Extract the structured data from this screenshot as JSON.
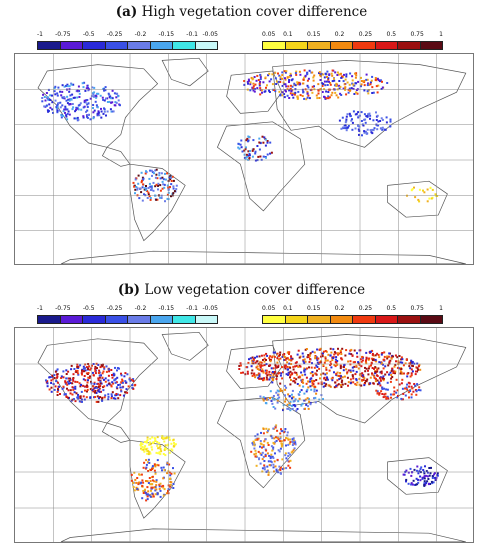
{
  "panels": [
    {
      "letter": "(a)",
      "title": "High vegetation cover difference",
      "neg_ticks": [
        "-1",
        "-0.75",
        "-0.5",
        "-0.25",
        "-0.2",
        "-0.15",
        "-0.1",
        "-0.05"
      ],
      "pos_ticks": [
        "0.05",
        "0.1",
        "0.15",
        "0.2",
        "0.25",
        "0.5",
        "0.75",
        "1"
      ]
    },
    {
      "letter": "(b)",
      "title": "Low vegetation cover difference",
      "neg_ticks": [
        "-1",
        "-0.75",
        "-0.5",
        "-0.25",
        "-0.2",
        "-0.15",
        "-0.1",
        "-0.05"
      ],
      "pos_ticks": [
        "0.05",
        "0.1",
        "0.15",
        "0.2",
        "0.25",
        "0.5",
        "0.75",
        "1"
      ]
    }
  ],
  "colors": {
    "negative": [
      "#1a1a8c",
      "#5a1ad6",
      "#2a2ad8",
      "#3a50e6",
      "#6a7ce8",
      "#4aa6ee",
      "#40e6e6",
      "#c8f8f8"
    ],
    "positive": [
      "#ffff40",
      "#f4d41a",
      "#f0b020",
      "#f28a10",
      "#f03a10",
      "#d81818",
      "#9a1010",
      "#5a0a14"
    ],
    "land_outline": "#555555",
    "grid": "#888888"
  }
}
